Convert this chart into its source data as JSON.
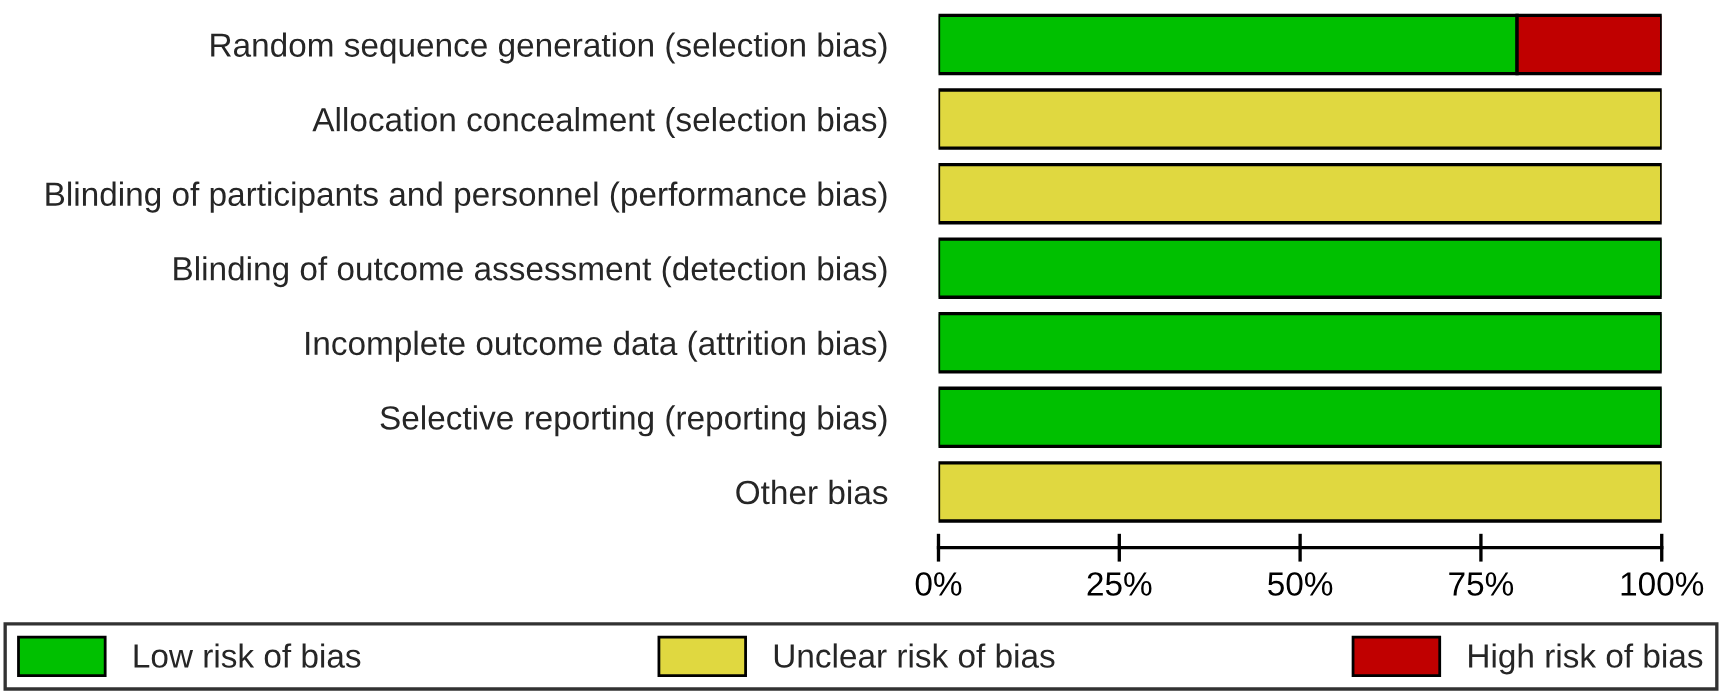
{
  "chart_data": {
    "type": "bar",
    "orientation": "horizontal",
    "stacked": true,
    "categories": [
      "Random sequence generation (selection bias)",
      "Allocation concealment (selection bias)",
      "Blinding of participants and personnel (performance bias)",
      "Blinding of outcome assessment (detection bias)",
      "Incomplete outcome data (attrition bias)",
      "Selective reporting (reporting bias)",
      "Other bias"
    ],
    "series": [
      {
        "name": "Low risk of bias",
        "color": "#00c000",
        "values": [
          80,
          0,
          0,
          100,
          100,
          100,
          0
        ]
      },
      {
        "name": "Unclear risk of bias",
        "color": "#e0d840",
        "values": [
          0,
          100,
          100,
          0,
          0,
          0,
          100
        ]
      },
      {
        "name": "High risk of bias",
        "color": "#c00000",
        "values": [
          20,
          0,
          0,
          0,
          0,
          0,
          0
        ]
      }
    ],
    "xlim": [
      0,
      100
    ],
    "xticks": [
      {
        "value": 0,
        "label": "0%"
      },
      {
        "value": 25,
        "label": "25%"
      },
      {
        "value": 50,
        "label": "50%"
      },
      {
        "value": 75,
        "label": "75%"
      },
      {
        "value": 100,
        "label": "100%"
      }
    ],
    "legend": "bottom",
    "grid": false
  }
}
